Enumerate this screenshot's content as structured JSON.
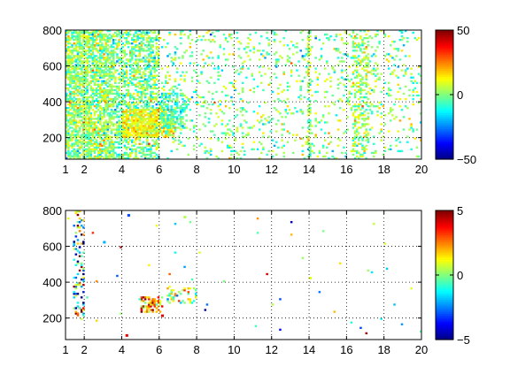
{
  "chart_data": [
    {
      "type": "heatmap",
      "title": "",
      "xlabel": "",
      "ylabel": "",
      "xlim": [
        1,
        20
      ],
      "ylim": [
        80,
        800
      ],
      "xticks": [
        1,
        2,
        4,
        6,
        8,
        10,
        12,
        14,
        16,
        18,
        20
      ],
      "xtick_labels": [
        "1",
        "2",
        "4",
        "6",
        "8",
        "10",
        "12",
        "14",
        "16",
        "18",
        "20"
      ],
      "yticks": [
        200,
        400,
        600,
        800
      ],
      "ytick_labels": [
        "200",
        "400",
        "600",
        "800"
      ],
      "grid": true,
      "colormap": "jet",
      "colorbar": {
        "range": [
          -50,
          50
        ],
        "ticks": [
          -50,
          0,
          50
        ],
        "tick_labels": [
          "−50",
          "0",
          "50"
        ]
      },
      "cell_size": [
        0.1,
        10
      ],
      "clusters": [
        {
          "x_range": [
            1.0,
            6.0
          ],
          "y_range": [
            80,
            800
          ],
          "density": 0.52,
          "value_mean": 0,
          "value_sd": 9
        },
        {
          "x_range": [
            1.0,
            3.5
          ],
          "y_range": [
            80,
            800
          ],
          "density": 0.35,
          "value_mean": 3,
          "value_sd": 9
        },
        {
          "x_range": [
            4.0,
            6.8
          ],
          "y_range": [
            200,
            360
          ],
          "density": 0.75,
          "value_mean": 12,
          "value_sd": 6
        },
        {
          "x_range": [
            6.0,
            7.5
          ],
          "y_range": [
            250,
            450
          ],
          "density": 0.45,
          "value_mean": -8,
          "value_sd": 6
        },
        {
          "x_range": [
            6.0,
            20.0
          ],
          "y_range": [
            80,
            800
          ],
          "density": 0.11,
          "value_mean": 0,
          "value_sd": 9
        },
        {
          "x_range": [
            13.9,
            14.1
          ],
          "y_range": [
            80,
            800
          ],
          "density": 0.5,
          "value_mean": 2,
          "value_sd": 8
        },
        {
          "x_range": [
            16.3,
            17.2
          ],
          "y_range": [
            80,
            800
          ],
          "density": 0.3,
          "value_mean": 4,
          "value_sd": 8
        }
      ]
    },
    {
      "type": "heatmap",
      "title": "",
      "xlabel": "",
      "ylabel": "",
      "xlim": [
        1,
        20
      ],
      "ylim": [
        80,
        800
      ],
      "xticks": [
        1,
        2,
        4,
        6,
        8,
        10,
        12,
        14,
        16,
        18,
        20
      ],
      "xtick_labels": [
        "1",
        "2",
        "4",
        "6",
        "8",
        "10",
        "12",
        "14",
        "16",
        "18",
        "20"
      ],
      "yticks": [
        200,
        400,
        600,
        800
      ],
      "ytick_labels": [
        "200",
        "400",
        "600",
        "800"
      ],
      "grid": true,
      "colormap": "jet",
      "colorbar": {
        "range": [
          -5,
          5
        ],
        "ticks": [
          -5,
          0,
          5
        ],
        "tick_labels": [
          "−5",
          "0",
          "5"
        ]
      },
      "cell_size": [
        0.1,
        10
      ],
      "clusters": [
        {
          "x_range": [
            1.4,
            2.0
          ],
          "y_range": [
            180,
            800
          ],
          "density": 0.22,
          "value_mean": -1,
          "value_sd": 3.5
        },
        {
          "x_range": [
            5.0,
            6.2
          ],
          "y_range": [
            230,
            320
          ],
          "density": 0.55,
          "value_mean": 2.5,
          "value_sd": 1.5
        },
        {
          "x_range": [
            6.3,
            8.0
          ],
          "y_range": [
            280,
            380
          ],
          "density": 0.25,
          "value_mean": 0.5,
          "value_sd": 1.5
        },
        {
          "x_range": [
            1.0,
            20.0
          ],
          "y_range": [
            80,
            800
          ],
          "density": 0.004,
          "value_mean": 0,
          "value_sd": 2.5
        }
      ],
      "points": [
        {
          "x": 4.3,
          "y": 770,
          "value": -3
        },
        {
          "x": 7.3,
          "y": 760,
          "value": 0.5
        },
        {
          "x": 4.2,
          "y": 100,
          "value": 4
        },
        {
          "x": 3.0,
          "y": 620,
          "value": -2
        },
        {
          "x": 14.0,
          "y": 420,
          "value": 1
        },
        {
          "x": 6.1,
          "y": 210,
          "value": 4
        }
      ]
    }
  ]
}
